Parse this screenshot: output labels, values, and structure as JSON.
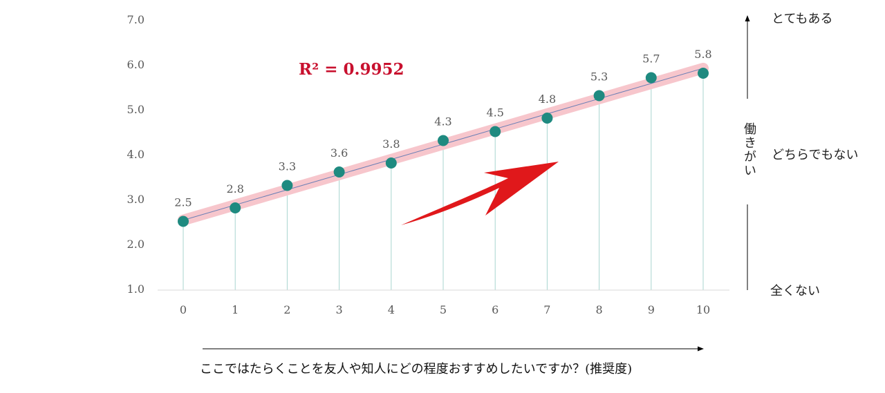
{
  "chart_data": {
    "type": "line",
    "x": [
      0,
      1,
      2,
      3,
      4,
      5,
      6,
      7,
      8,
      9,
      10
    ],
    "series": [
      {
        "values": [
          2.5,
          2.8,
          3.3,
          3.6,
          3.8,
          4.3,
          4.5,
          4.8,
          5.3,
          5.7,
          5.8
        ]
      }
    ],
    "value_labels": [
      "2.5",
      "2.8",
      "3.3",
      "3.6",
      "3.8",
      "4.3",
      "4.5",
      "4.8",
      "5.3",
      "5.7",
      "5.8"
    ],
    "y_ticks": [
      "1.0",
      "2.0",
      "3.0",
      "4.0",
      "5.0",
      "6.0",
      "7.0"
    ],
    "x_ticks": [
      "0",
      "1",
      "2",
      "3",
      "4",
      "5",
      "6",
      "7",
      "8",
      "9",
      "10"
    ],
    "ylim": [
      1,
      7
    ],
    "xlim": [
      0,
      10
    ],
    "trendline": {
      "type": "linear",
      "r_squared_label": "R² = 0.9952"
    },
    "xlabel": "ここではたらくことを友人や知人にどの程度おすすめしたいですか？(推奨度)",
    "ylabel": "働きがい",
    "grid": false,
    "drop_lines": true
  },
  "scale_labels": {
    "top": "とてもある",
    "middle": "どちらでもない",
    "bottom": "全くない"
  },
  "colors": {
    "marker": "#1f8a80",
    "drop_line": "#a8d5cf",
    "trend_band": "#f7c6cc",
    "trend_line": "#6b7fb5",
    "arrow": "#e0181b",
    "r2": "#c8102e",
    "axis": "#d9d9d9"
  }
}
